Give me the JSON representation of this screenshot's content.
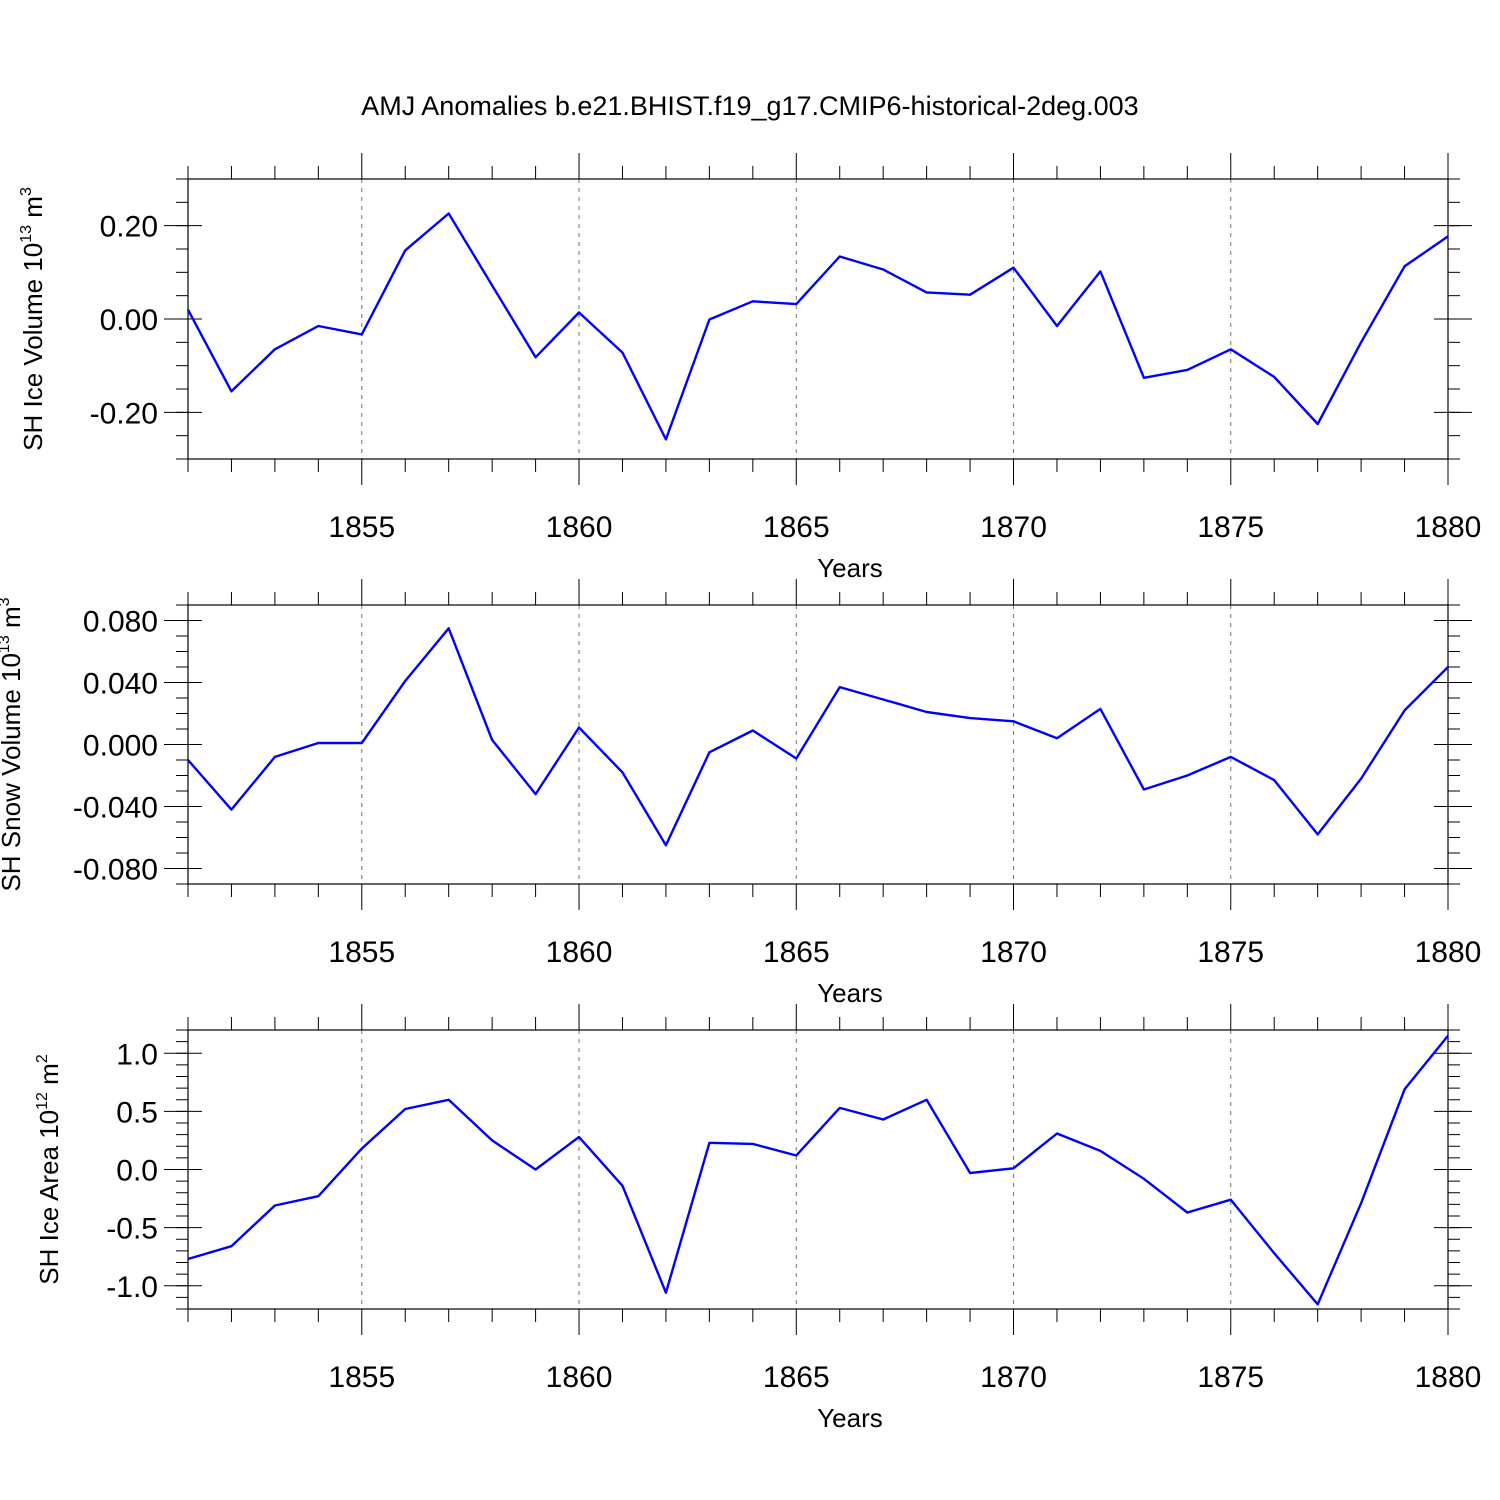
{
  "figure": {
    "title": "AMJ Anomalies b.e21.BHIST.f19_g17.CMIP6-historical-2deg.003"
  },
  "chart_data": [
    {
      "type": "line",
      "name": "sh-ice-volume",
      "ylabel": {
        "prefix": "SH Ice Volume 10",
        "exp": "13",
        "unit": " m",
        "unit_exp": "3"
      },
      "xlabel": "Years",
      "xlim": [
        1851,
        1880
      ],
      "ylim": [
        -0.3,
        0.3
      ],
      "xticks": [
        1855,
        1860,
        1865,
        1870,
        1875,
        1880
      ],
      "yticks": [
        {
          "value": 0.2,
          "label": "0.20"
        },
        {
          "value": 0.0,
          "label": "0.00"
        },
        {
          "value": -0.2,
          "label": "-0.20"
        }
      ],
      "yminor_step": 0.05,
      "grid": "x-dashed",
      "x": [
        1851,
        1852,
        1853,
        1854,
        1855,
        1856,
        1857,
        1858,
        1859,
        1860,
        1861,
        1862,
        1863,
        1864,
        1865,
        1866,
        1867,
        1868,
        1869,
        1870,
        1871,
        1872,
        1873,
        1874,
        1875,
        1876,
        1877,
        1878,
        1879,
        1880
      ],
      "values": [
        0.02,
        -0.155,
        -0.065,
        -0.015,
        -0.033,
        0.147,
        0.226,
        0.072,
        -0.082,
        0.014,
        -0.072,
        -0.258,
        -0.001,
        0.038,
        0.032,
        0.134,
        0.106,
        0.057,
        0.052,
        0.11,
        -0.015,
        0.102,
        -0.126,
        -0.109,
        -0.065,
        -0.124,
        -0.225,
        -0.05,
        0.113,
        0.177
      ]
    },
    {
      "type": "line",
      "name": "sh-snow-volume",
      "ylabel": {
        "prefix": "SH Snow Volume 10",
        "exp": "13",
        "unit": " m",
        "unit_exp": "3"
      },
      "xlabel": "Years",
      "xlim": [
        1851,
        1880
      ],
      "ylim": [
        -0.09,
        0.09
      ],
      "xticks": [
        1855,
        1860,
        1865,
        1870,
        1875,
        1880
      ],
      "yticks": [
        {
          "value": 0.08,
          "label": "0.080"
        },
        {
          "value": 0.04,
          "label": "0.040"
        },
        {
          "value": 0.0,
          "label": "0.000"
        },
        {
          "value": -0.04,
          "label": "-0.040"
        },
        {
          "value": -0.08,
          "label": "-0.080"
        }
      ],
      "yminor_step": 0.01,
      "grid": "x-dashed",
      "x": [
        1851,
        1852,
        1853,
        1854,
        1855,
        1856,
        1857,
        1858,
        1859,
        1860,
        1861,
        1862,
        1863,
        1864,
        1865,
        1866,
        1867,
        1868,
        1869,
        1870,
        1871,
        1872,
        1873,
        1874,
        1875,
        1876,
        1877,
        1878,
        1879,
        1880
      ],
      "values": [
        -0.01,
        -0.042,
        -0.008,
        0.001,
        0.001,
        0.041,
        0.075,
        0.003,
        -0.032,
        0.011,
        -0.018,
        -0.065,
        -0.005,
        0.009,
        -0.009,
        0.037,
        0.029,
        0.021,
        0.017,
        0.015,
        0.004,
        0.023,
        -0.029,
        -0.02,
        -0.008,
        -0.023,
        -0.058,
        -0.022,
        0.022,
        0.05
      ]
    },
    {
      "type": "line",
      "name": "sh-ice-area",
      "ylabel": {
        "prefix": "SH Ice Area 10",
        "exp": "12",
        "unit": " m",
        "unit_exp": "2"
      },
      "xlabel": "Years",
      "xlim": [
        1851,
        1880
      ],
      "ylim": [
        -1.2,
        1.2
      ],
      "xticks": [
        1855,
        1860,
        1865,
        1870,
        1875,
        1880
      ],
      "yticks": [
        {
          "value": 1.0,
          "label": "1.0"
        },
        {
          "value": 0.5,
          "label": "0.5"
        },
        {
          "value": 0.0,
          "label": "0.0"
        },
        {
          "value": -0.5,
          "label": "-0.5"
        },
        {
          "value": -1.0,
          "label": "-1.0"
        }
      ],
      "yminor_step": 0.1,
      "grid": "x-dashed",
      "x": [
        1851,
        1852,
        1853,
        1854,
        1855,
        1856,
        1857,
        1858,
        1859,
        1860,
        1861,
        1862,
        1863,
        1864,
        1865,
        1866,
        1867,
        1868,
        1869,
        1870,
        1871,
        1872,
        1873,
        1874,
        1875,
        1876,
        1877,
        1878,
        1879,
        1880
      ],
      "values": [
        -0.77,
        -0.66,
        -0.31,
        -0.23,
        0.18,
        0.52,
        0.6,
        0.25,
        0.0,
        0.28,
        -0.14,
        -1.06,
        0.23,
        0.22,
        0.12,
        0.53,
        0.43,
        0.6,
        -0.03,
        0.01,
        0.31,
        0.16,
        -0.08,
        -0.37,
        -0.26,
        -0.72,
        -1.16,
        -0.29,
        0.69,
        1.15
      ]
    }
  ],
  "style": {
    "line_color": "#0000ff",
    "axis_color": "#000000",
    "grid_color": "#777777"
  }
}
